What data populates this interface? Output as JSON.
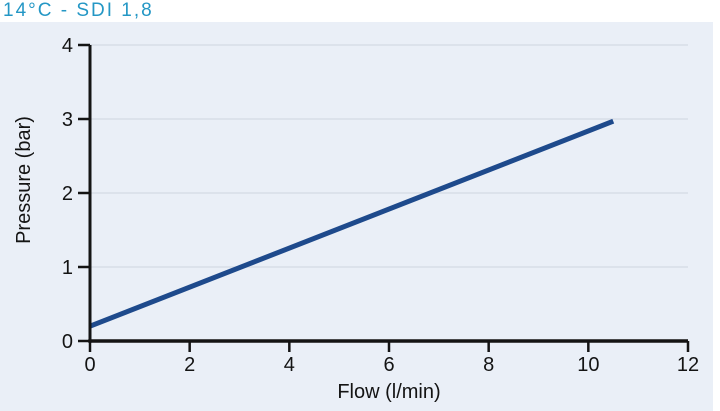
{
  "colors": {
    "title_text": "#2497c5",
    "panel_background": "#eaeff7",
    "page_background": "#ffffff",
    "grid_line": "#d8dde7",
    "axis_line": "#141414",
    "tick_label_text": "#141414",
    "series_line": "#1e4a8c"
  },
  "chart_data": {
    "type": "line",
    "title": "14°C - SDI 1,8",
    "xlabel": "Flow (l/min)",
    "ylabel": "Pressure (bar)",
    "xlim": [
      0,
      12
    ],
    "ylim": [
      0,
      4
    ],
    "xticks": [
      0,
      2,
      4,
      6,
      8,
      10,
      12
    ],
    "yticks": [
      0,
      1,
      2,
      3,
      4
    ],
    "grid": "horizontal-only",
    "legend_position": "none",
    "series": [
      {
        "name": "14°C - SDI 1,8",
        "x": [
          0,
          10.5
        ],
        "y": [
          0.2,
          2.97
        ]
      }
    ]
  }
}
